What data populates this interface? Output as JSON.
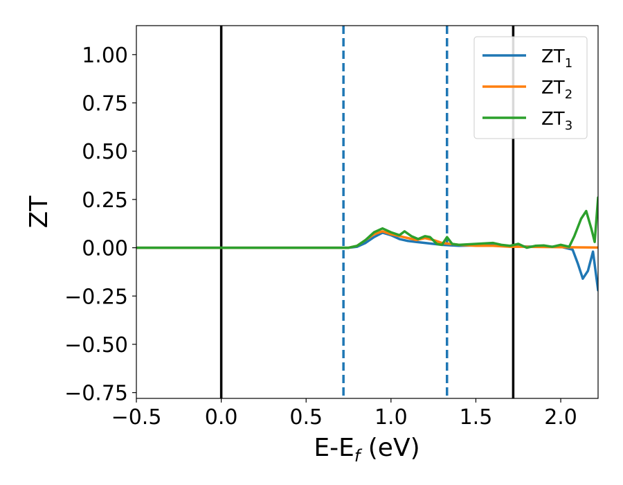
{
  "chart_data": {
    "type": "line",
    "xlabel": "E-E_f (eV)",
    "xlabel_main": "E-E",
    "xlabel_sub": "f",
    "xlabel_tail": " (eV)",
    "ylabel": "ZT",
    "xlim": [
      -0.5,
      2.22
    ],
    "ylim": [
      -0.78,
      1.15
    ],
    "xticks": [
      -0.5,
      0.0,
      0.5,
      1.0,
      1.5,
      2.0
    ],
    "xtick_labels": [
      "−0.5",
      "0.0",
      "0.5",
      "1.0",
      "1.5",
      "2.0"
    ],
    "yticks": [
      -0.75,
      -0.5,
      -0.25,
      0.0,
      0.25,
      0.5,
      0.75,
      1.0
    ],
    "ytick_labels": [
      "−0.75",
      "−0.50",
      "−0.25",
      "0.00",
      "0.25",
      "0.50",
      "0.75",
      "1.00"
    ],
    "grid": false,
    "legend_position": "top-right",
    "vlines": [
      {
        "x": 0.0,
        "style": "solid",
        "color": "#000000"
      },
      {
        "x": 0.72,
        "style": "dashed",
        "color": "#1f77b4"
      },
      {
        "x": 1.33,
        "style": "dashed",
        "color": "#1f77b4"
      },
      {
        "x": 1.72,
        "style": "solid",
        "color": "#000000"
      }
    ],
    "series": [
      {
        "name": "ZT",
        "name_sub": "1",
        "color": "#1f77b4",
        "x": [
          -0.5,
          0.0,
          0.5,
          0.75,
          0.8,
          0.85,
          0.9,
          0.95,
          1.0,
          1.05,
          1.1,
          1.15,
          1.2,
          1.3,
          1.4,
          1.5,
          1.6,
          1.7,
          1.8,
          1.9,
          2.0,
          2.07,
          2.1,
          2.13,
          2.16,
          2.19,
          2.22
        ],
        "y": [
          0,
          0,
          0,
          0.0,
          0.005,
          0.025,
          0.055,
          0.078,
          0.065,
          0.045,
          0.035,
          0.03,
          0.025,
          0.015,
          0.01,
          0.012,
          0.015,
          0.008,
          0.006,
          0.005,
          0.005,
          -0.01,
          -0.08,
          -0.16,
          -0.12,
          -0.02,
          -0.22
        ]
      },
      {
        "name": "ZT",
        "name_sub": "2",
        "color": "#ff7f0e",
        "x": [
          -0.5,
          0.0,
          0.5,
          0.75,
          0.8,
          0.85,
          0.9,
          0.95,
          1.0,
          1.05,
          1.1,
          1.15,
          1.2,
          1.25,
          1.3,
          1.4,
          1.5,
          1.6,
          1.7,
          1.8,
          1.9,
          2.0,
          2.1,
          2.22
        ],
        "y": [
          0,
          0,
          0,
          0.0,
          0.01,
          0.04,
          0.07,
          0.085,
          0.07,
          0.06,
          0.05,
          0.04,
          0.05,
          0.04,
          0.025,
          0.015,
          0.01,
          0.01,
          0.005,
          0.005,
          0.004,
          0.003,
          0.002,
          0.001
        ]
      },
      {
        "name": "ZT",
        "name_sub": "3",
        "color": "#2ca02c",
        "x": [
          -0.5,
          0.0,
          0.5,
          0.75,
          0.8,
          0.85,
          0.9,
          0.95,
          1.0,
          1.05,
          1.08,
          1.12,
          1.16,
          1.2,
          1.23,
          1.27,
          1.3,
          1.33,
          1.36,
          1.4,
          1.5,
          1.6,
          1.65,
          1.7,
          1.75,
          1.8,
          1.85,
          1.9,
          1.95,
          2.0,
          2.05,
          2.08,
          2.12,
          2.15,
          2.18,
          2.2,
          2.22
        ],
        "y": [
          0,
          0,
          0,
          0.0,
          0.01,
          0.04,
          0.08,
          0.1,
          0.08,
          0.065,
          0.085,
          0.06,
          0.045,
          0.06,
          0.055,
          0.02,
          0.015,
          0.055,
          0.02,
          0.015,
          0.02,
          0.025,
          0.015,
          0.01,
          0.02,
          0.0,
          0.01,
          0.012,
          0.005,
          0.015,
          0.005,
          0.06,
          0.15,
          0.19,
          0.1,
          0.03,
          0.26
        ]
      }
    ]
  }
}
